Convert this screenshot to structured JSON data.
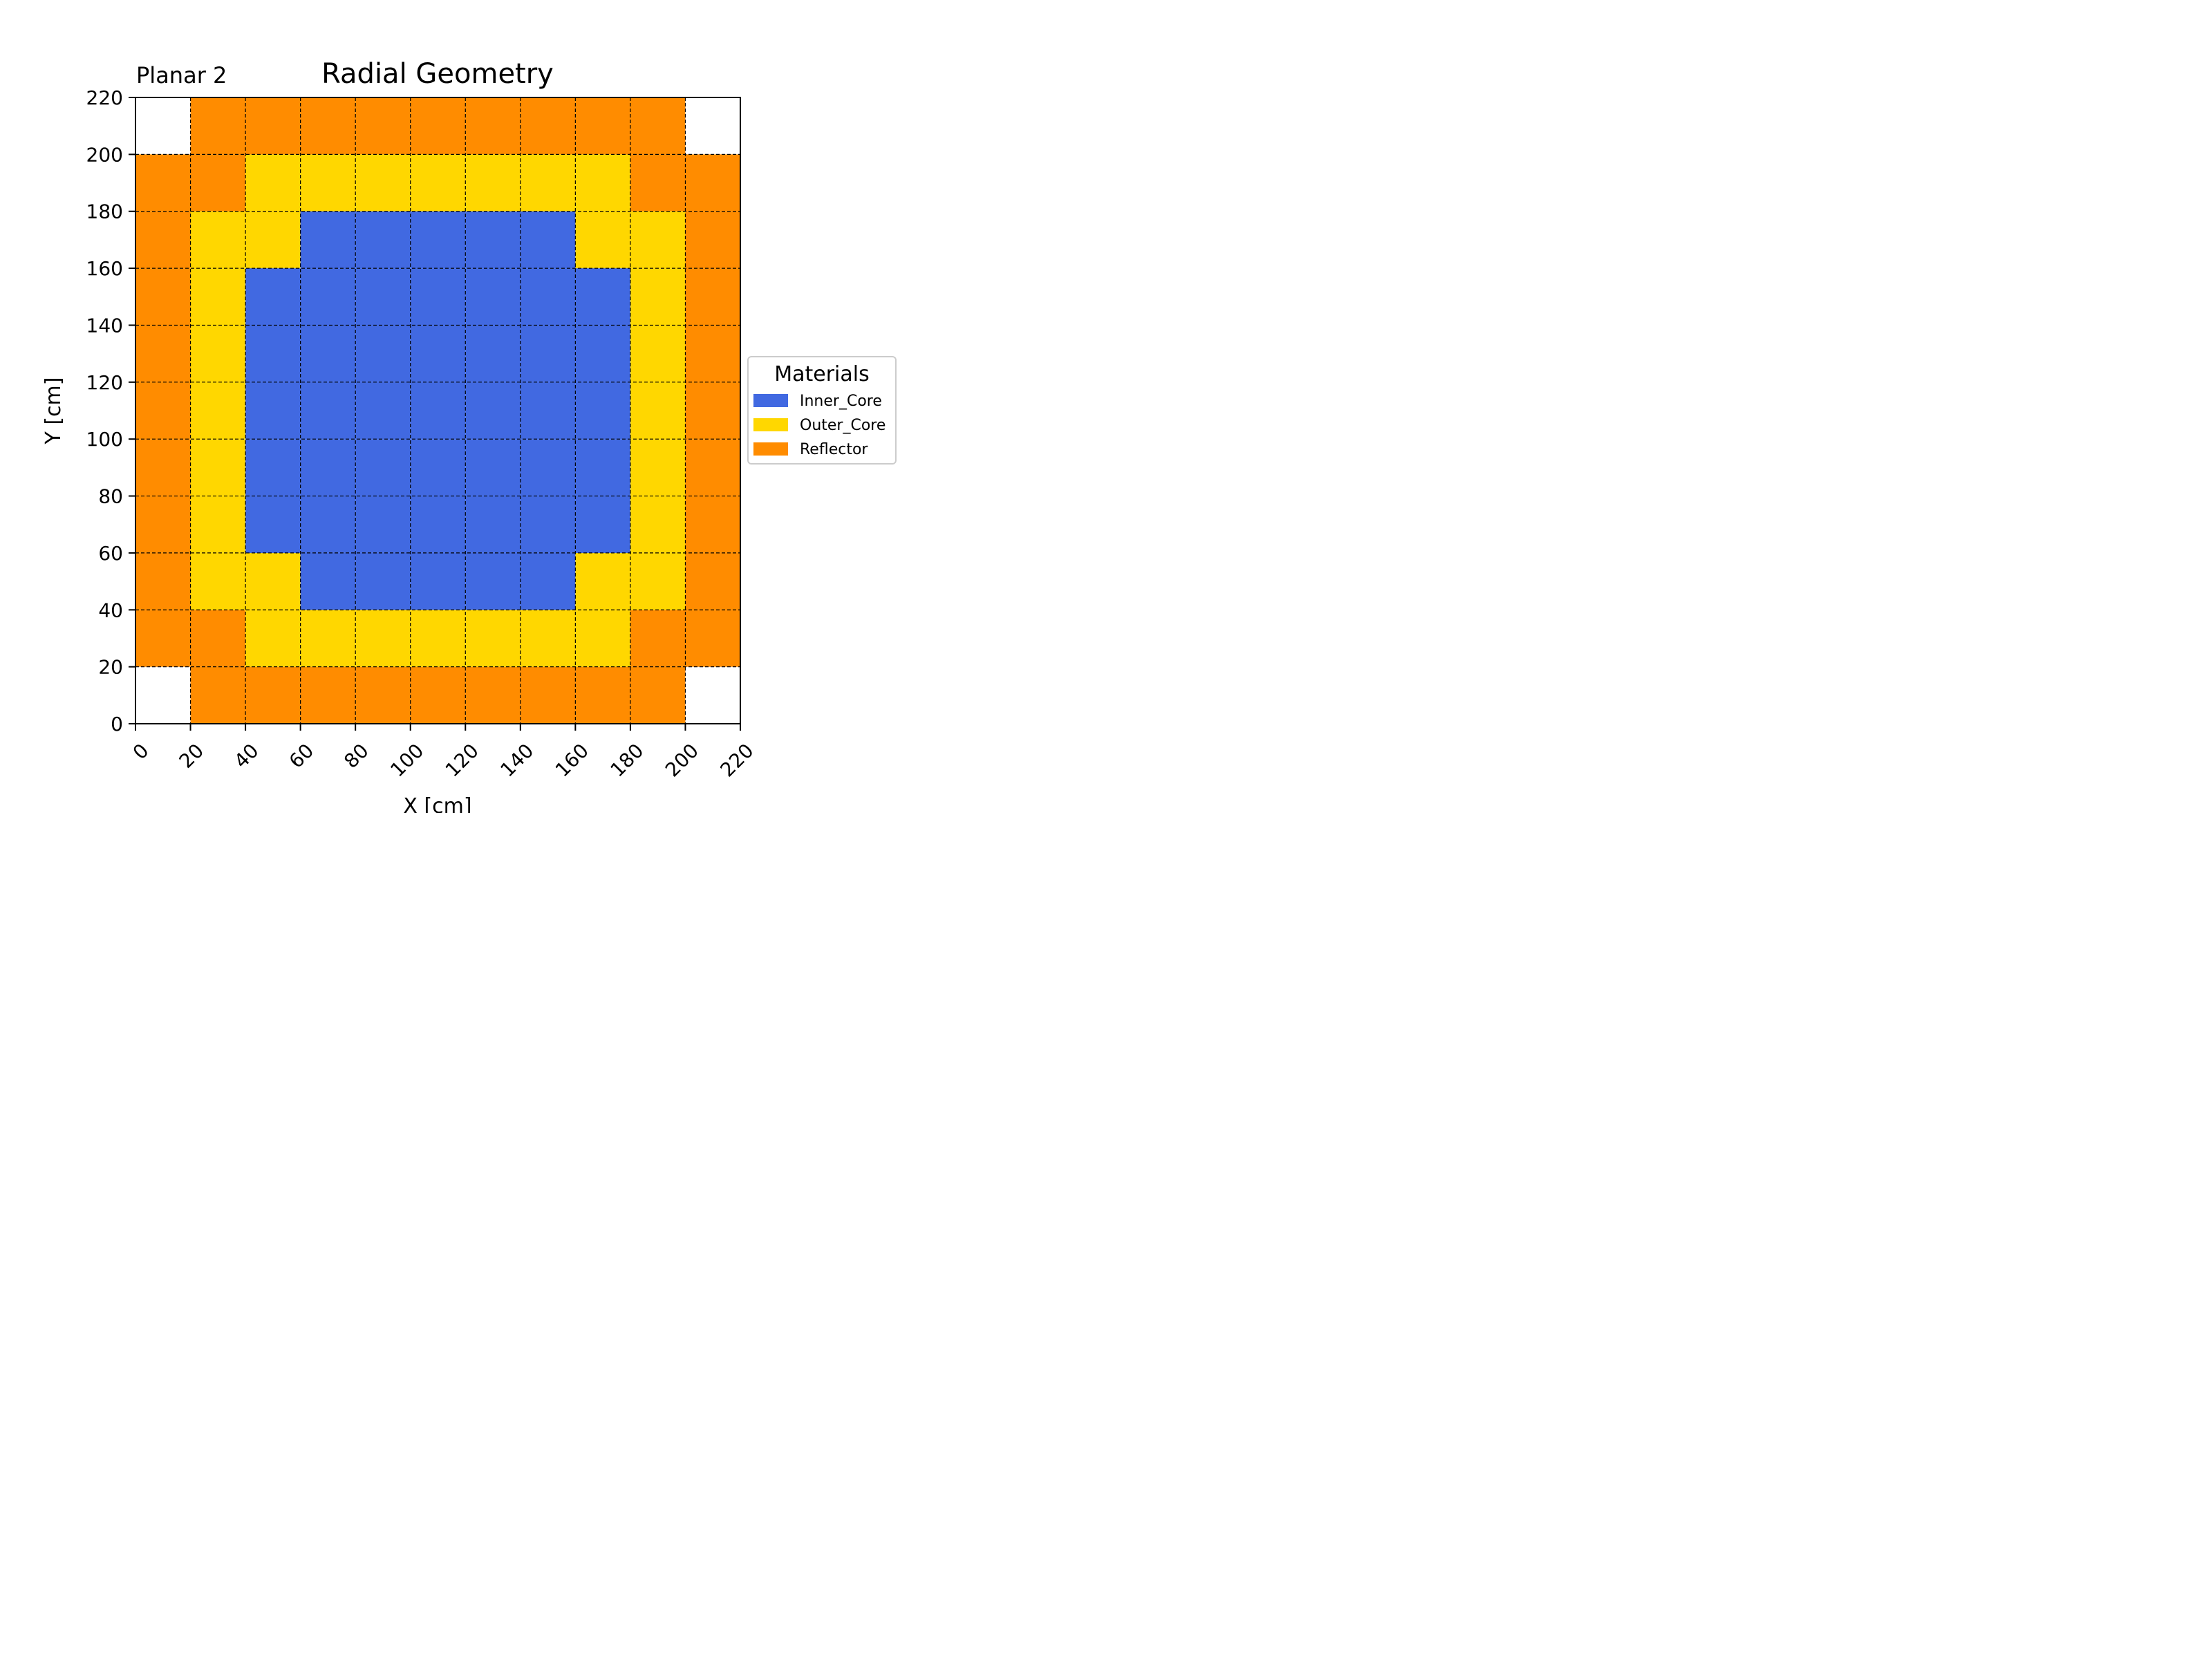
{
  "chart_data": {
    "type": "heatmap",
    "title": "Radial Geometry",
    "subtitle": "Planar 2",
    "xlabel": "X [cm]",
    "ylabel": "Y [cm]",
    "xlim": [
      0,
      220
    ],
    "ylim": [
      0,
      220
    ],
    "cell_size": 20,
    "x_ticks": [
      "0",
      "20",
      "40",
      "60",
      "80",
      "100",
      "120",
      "140",
      "160",
      "180",
      "200",
      "220"
    ],
    "y_ticks": [
      "0",
      "20",
      "40",
      "60",
      "80",
      "100",
      "120",
      "140",
      "160",
      "180",
      "200",
      "220"
    ],
    "grid": true,
    "legend": {
      "title": "Materials",
      "placement": "right",
      "entries": [
        {
          "name": "Inner_Core",
          "color": "#4169E1"
        },
        {
          "name": "Outer_Core",
          "color": "#FFD700"
        },
        {
          "name": "Reflector",
          "color": "#FF8C00"
        }
      ]
    },
    "materials": [
      "Inner_Core",
      "Outer_Core",
      "Reflector"
    ],
    "map_rows_bottom_to_top": [
      [
        null,
        "Reflector",
        "Reflector",
        "Reflector",
        "Reflector",
        "Reflector",
        "Reflector",
        "Reflector",
        "Reflector",
        "Reflector",
        null
      ],
      [
        "Reflector",
        "Reflector",
        "Outer_Core",
        "Outer_Core",
        "Outer_Core",
        "Outer_Core",
        "Outer_Core",
        "Outer_Core",
        "Outer_Core",
        "Reflector",
        "Reflector"
      ],
      [
        "Reflector",
        "Outer_Core",
        "Outer_Core",
        "Inner_Core",
        "Inner_Core",
        "Inner_Core",
        "Inner_Core",
        "Inner_Core",
        "Outer_Core",
        "Outer_Core",
        "Reflector"
      ],
      [
        "Reflector",
        "Outer_Core",
        "Inner_Core",
        "Inner_Core",
        "Inner_Core",
        "Inner_Core",
        "Inner_Core",
        "Inner_Core",
        "Inner_Core",
        "Outer_Core",
        "Reflector"
      ],
      [
        "Reflector",
        "Outer_Core",
        "Inner_Core",
        "Inner_Core",
        "Inner_Core",
        "Inner_Core",
        "Inner_Core",
        "Inner_Core",
        "Inner_Core",
        "Outer_Core",
        "Reflector"
      ],
      [
        "Reflector",
        "Outer_Core",
        "Inner_Core",
        "Inner_Core",
        "Inner_Core",
        "Inner_Core",
        "Inner_Core",
        "Inner_Core",
        "Inner_Core",
        "Outer_Core",
        "Reflector"
      ],
      [
        "Reflector",
        "Outer_Core",
        "Inner_Core",
        "Inner_Core",
        "Inner_Core",
        "Inner_Core",
        "Inner_Core",
        "Inner_Core",
        "Inner_Core",
        "Outer_Core",
        "Reflector"
      ],
      [
        "Reflector",
        "Outer_Core",
        "Inner_Core",
        "Inner_Core",
        "Inner_Core",
        "Inner_Core",
        "Inner_Core",
        "Inner_Core",
        "Inner_Core",
        "Outer_Core",
        "Reflector"
      ],
      [
        "Reflector",
        "Outer_Core",
        "Outer_Core",
        "Inner_Core",
        "Inner_Core",
        "Inner_Core",
        "Inner_Core",
        "Inner_Core",
        "Outer_Core",
        "Outer_Core",
        "Reflector"
      ],
      [
        "Reflector",
        "Reflector",
        "Outer_Core",
        "Outer_Core",
        "Outer_Core",
        "Outer_Core",
        "Outer_Core",
        "Outer_Core",
        "Outer_Core",
        "Reflector",
        "Reflector"
      ],
      [
        null,
        "Reflector",
        "Reflector",
        "Reflector",
        "Reflector",
        "Reflector",
        "Reflector",
        "Reflector",
        "Reflector",
        "Reflector",
        null
      ]
    ]
  }
}
